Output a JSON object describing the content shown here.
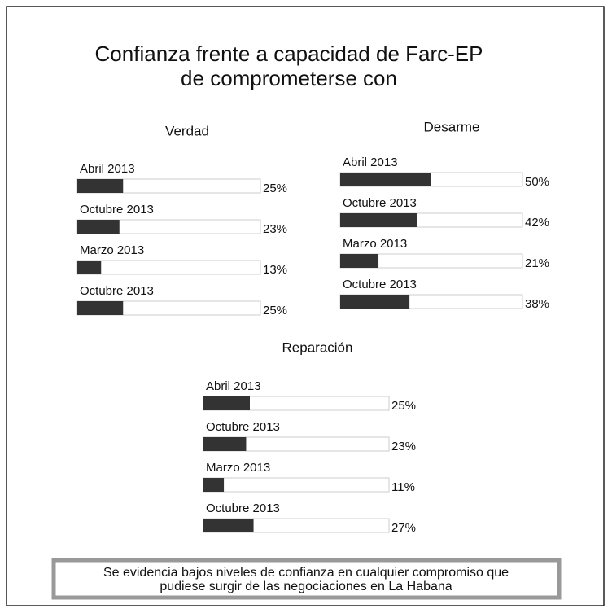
{
  "title": [
    "Confianza frente a capacidad de Farc-EP",
    "de comprometerse con"
  ],
  "note": [
    "Se evidencia bajos niveles de confianza en cualquier compromiso que",
    "pudiese surgir de las negociaciones en La Habana"
  ],
  "chart_data": [
    {
      "type": "hbar",
      "title": "Verdad",
      "categories": [
        "Abril 2013",
        "Octubre 2013",
        "Marzo 2013",
        "Octubre 2013"
      ],
      "values": [
        25,
        23,
        13,
        25
      ],
      "value_labels": [
        "25%",
        "23%",
        "13%",
        "25%"
      ],
      "xlim": [
        0,
        100
      ],
      "color": "#333333"
    },
    {
      "type": "hbar",
      "title": "Desarme",
      "categories": [
        "Abril 2013",
        "Octubre 2013",
        "Marzo 2013",
        "Octubre 2013"
      ],
      "values": [
        50,
        42,
        21,
        38
      ],
      "value_labels": [
        "50%",
        "42%",
        "21%",
        "38%"
      ],
      "xlim": [
        0,
        100
      ],
      "color": "#333333"
    },
    {
      "type": "hbar",
      "title": "Reparación",
      "categories": [
        "Abril 2013",
        "Octubre 2013",
        "Marzo 2013",
        "Octubre 2013"
      ],
      "values": [
        25,
        23,
        11,
        27
      ],
      "value_labels": [
        "25%",
        "23%",
        "11%",
        "27%"
      ],
      "xlim": [
        0,
        100
      ],
      "color": "#333333"
    }
  ]
}
